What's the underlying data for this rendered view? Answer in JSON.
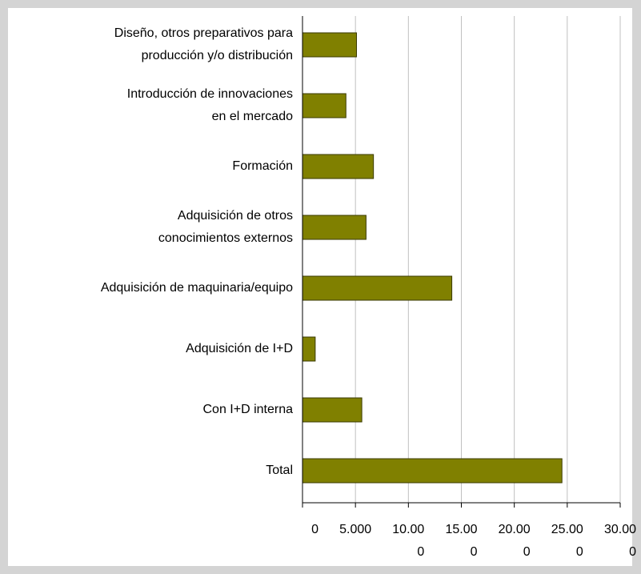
{
  "chart_data": {
    "type": "barh",
    "categories": [
      "Diseño, otros preparativos para\nproducción  y/o distribución",
      "Introducción de innovaciones\nen el mercado",
      "Formación",
      "Adquisición de otros\nconocimientos externos",
      "Adquisición de maquinaria/equipo",
      "Adquisición de I+D",
      "Con I+D interna",
      "Total"
    ],
    "values": [
      5100,
      4100,
      6700,
      6000,
      14100,
      1200,
      5600,
      24500
    ],
    "color": "#808000",
    "xlim": [
      0,
      30000
    ],
    "xticks": [
      0,
      {
        "value": 5000,
        "label": "5.000"
      },
      {
        "value": 10000,
        "label": "10.000"
      },
      {
        "value": 15000,
        "label": "15.000"
      },
      {
        "value": 20000,
        "label": "20.000"
      },
      {
        "value": 25000,
        "label": "25.000"
      },
      {
        "value": 30000,
        "label": "30.000"
      }
    ],
    "grid": true
  }
}
